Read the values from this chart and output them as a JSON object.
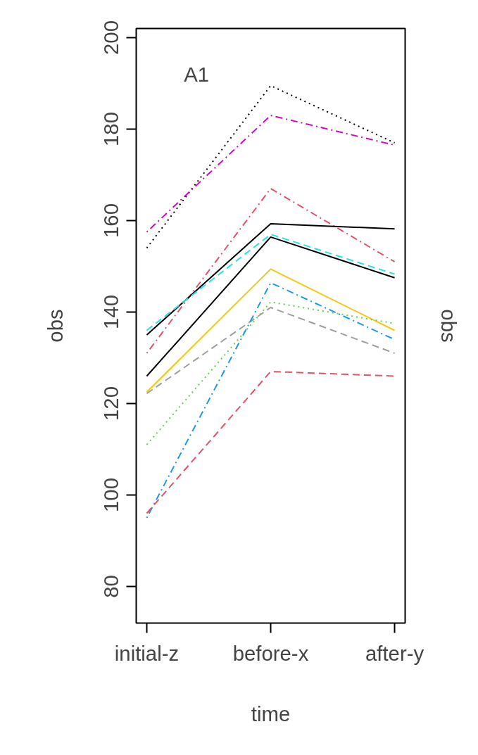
{
  "chart_data": {
    "type": "line",
    "xlabel": "time",
    "ylabel": "obs",
    "y2label": "obs",
    "categories": [
      "initial-z",
      "before-x",
      "after-y"
    ],
    "ylim": [
      72,
      202
    ],
    "yticks": [
      80,
      100,
      120,
      140,
      160,
      180,
      200
    ],
    "annotations": [
      "A1"
    ],
    "grid": false,
    "marker": "none",
    "series": [
      {
        "color": "#000000",
        "line_style": "dotted",
        "values": [
          154,
          189.5,
          177
        ]
      },
      {
        "color": "#cd0bbc",
        "line_style": "dashdot",
        "values": [
          157.5,
          183,
          176.5
        ]
      },
      {
        "color": "#df536b",
        "line_style": "dashdot",
        "values": [
          131,
          167,
          151
        ]
      },
      {
        "color": "#000000",
        "line_style": "solid",
        "values": [
          135,
          159.3,
          158.2
        ]
      },
      {
        "color": "#28e2e5",
        "line_style": "dashed",
        "values": [
          136,
          157,
          148.3
        ]
      },
      {
        "color": "#000000",
        "line_style": "solid",
        "values": [
          126,
          156.4,
          147.5
        ]
      },
      {
        "color": "#f5c710",
        "line_style": "solid",
        "values": [
          122.5,
          149.4,
          136
        ]
      },
      {
        "color": "#9e9e9e",
        "line_style": "dashed",
        "values": [
          122.2,
          141,
          131
        ]
      },
      {
        "color": "#61d04f",
        "line_style": "dotted",
        "values": [
          111,
          142.2,
          137.5
        ]
      },
      {
        "color": "#2297e6",
        "line_style": "dashdot",
        "values": [
          95,
          146.4,
          134
        ]
      },
      {
        "color": "#df536b",
        "line_style": "dashed",
        "values": [
          96,
          127,
          126
        ]
      }
    ]
  }
}
